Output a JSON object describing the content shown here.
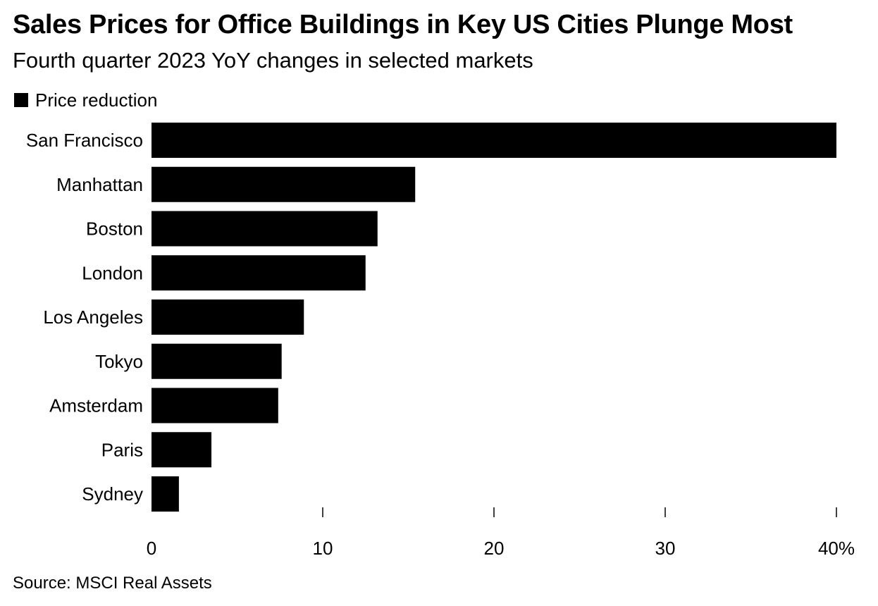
{
  "chart_data": {
    "type": "bar",
    "orientation": "horizontal",
    "title": "Sales Prices for Office Buildings in Key US Cities Plunge Most",
    "subtitle": "Fourth quarter 2023 YoY changes in selected markets",
    "legend": [
      "Price reduction"
    ],
    "legend_position": "top-left",
    "categories": [
      "San Francisco",
      "Manhattan",
      "Boston",
      "London",
      "Los Angeles",
      "Tokyo",
      "Amsterdam",
      "Paris",
      "Sydney"
    ],
    "series": [
      {
        "name": "Price reduction",
        "color": "#000000",
        "values": [
          40,
          15.4,
          13.2,
          12.5,
          8.9,
          7.6,
          7.4,
          3.5,
          1.6
        ]
      }
    ],
    "xlim": [
      0,
      40
    ],
    "xticks": [
      0,
      10,
      20,
      30,
      40
    ],
    "xtick_labels": [
      "0",
      "10",
      "20",
      "30",
      "40%"
    ],
    "xlabel": "",
    "ylabel": "",
    "grid": false,
    "source": "Source: MSCI Real Assets"
  }
}
